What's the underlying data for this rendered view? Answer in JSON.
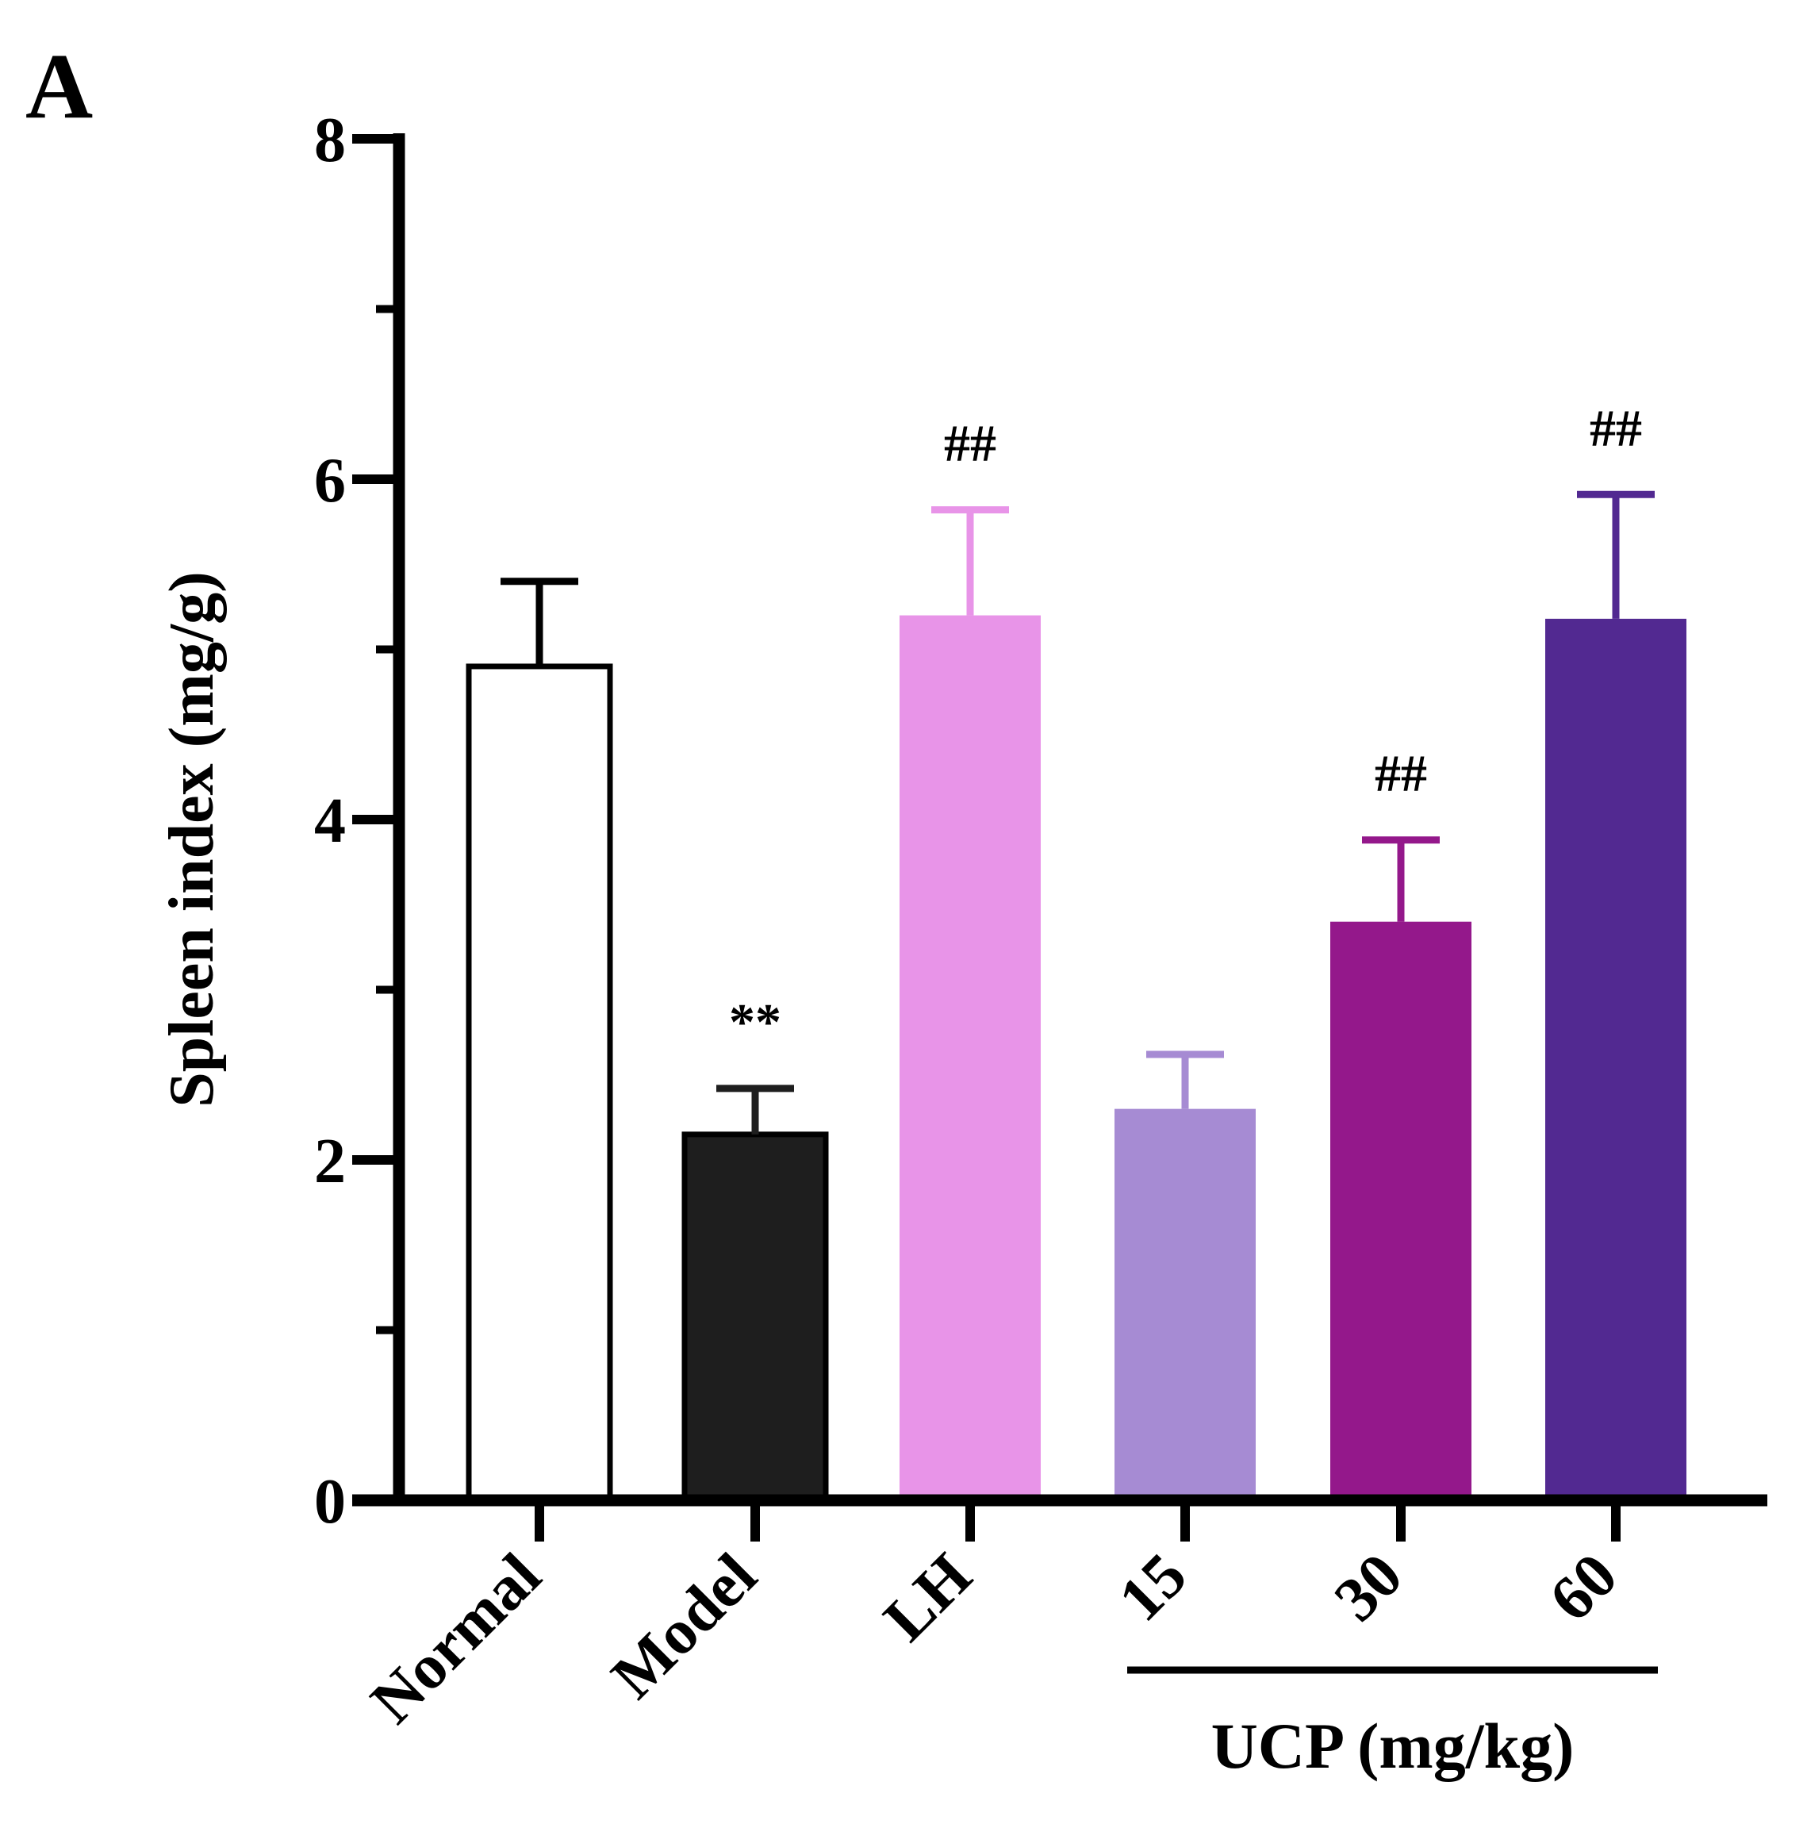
{
  "panel_label": "A",
  "chart_data": {
    "type": "bar",
    "title": "",
    "xlabel": "",
    "ylabel": "Spleen index (mg/g)",
    "ylim": [
      0,
      8
    ],
    "yticks_major": [
      0,
      2,
      4,
      6,
      8
    ],
    "yticks_minor": [
      1,
      3,
      5,
      7
    ],
    "categories": [
      "Normal",
      "Model",
      "LH",
      "15",
      "30",
      "60"
    ],
    "values": [
      4.9,
      2.15,
      5.2,
      2.3,
      3.4,
      5.18
    ],
    "errors": [
      0.5,
      0.27,
      0.62,
      0.32,
      0.48,
      0.73
    ],
    "significance": [
      "",
      "**",
      "##",
      "",
      "##",
      "##"
    ],
    "colors": [
      "#ffffff",
      "#1e1e1e",
      "#e894e8",
      "#a68bd3",
      "#94188b",
      "#522991"
    ],
    "group_label": "UCP (mg/kg)",
    "group_members": [
      "15",
      "30",
      "60"
    ]
  }
}
